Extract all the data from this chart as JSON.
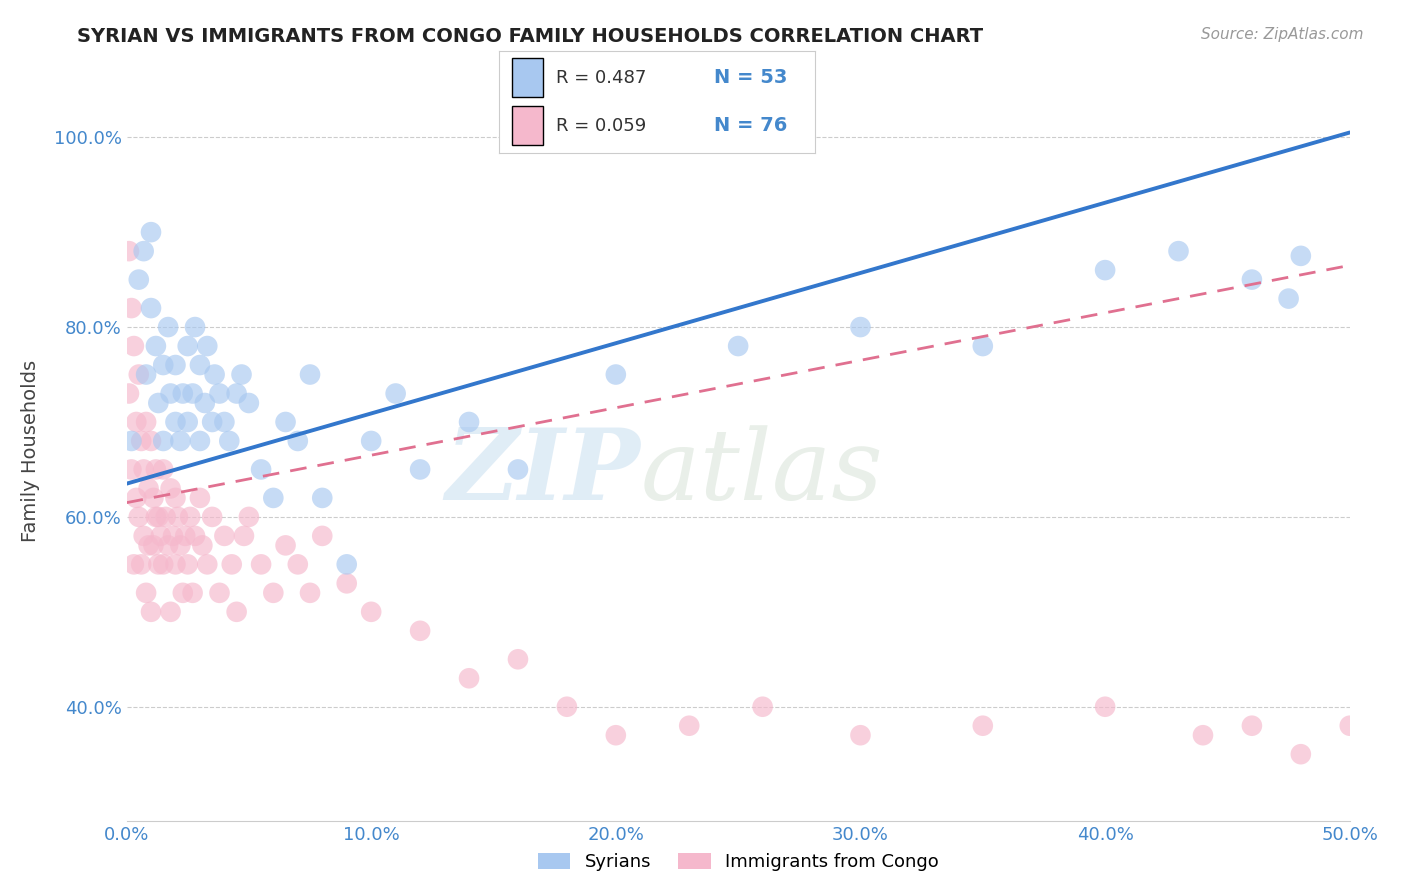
{
  "title": "SYRIAN VS IMMIGRANTS FROM CONGO FAMILY HOUSEHOLDS CORRELATION CHART",
  "source": "Source: ZipAtlas.com",
  "ylabel": "Family Households",
  "xlim": [
    0,
    0.5
  ],
  "ylim": [
    0.28,
    1.06
  ],
  "ytick_vals": [
    0.4,
    0.6,
    0.8,
    1.0
  ],
  "ytick_labels": [
    "40.0%",
    "60.0%",
    "80.0%",
    "100.0%"
  ],
  "xtick_vals": [
    0.0,
    0.1,
    0.2,
    0.3,
    0.4,
    0.5
  ],
  "xtick_labels": [
    "0.0%",
    "10.0%",
    "20.0%",
    "30.0%",
    "40.0%",
    "50.0%"
  ],
  "syrian_color": "#a8c8f0",
  "congo_color": "#f5b8cc",
  "syrian_line_color": "#3377cc",
  "congo_line_color": "#e07090",
  "watermark_zip": "ZIP",
  "watermark_atlas": "atlas",
  "syrian_line_x0": 0.0,
  "syrian_line_y0": 0.635,
  "syrian_line_x1": 0.5,
  "syrian_line_y1": 1.005,
  "congo_line_x0": 0.0,
  "congo_line_y0": 0.615,
  "congo_line_x1": 0.5,
  "congo_line_y1": 0.865,
  "syrian_points_x": [
    0.002,
    0.005,
    0.007,
    0.008,
    0.01,
    0.01,
    0.012,
    0.013,
    0.015,
    0.015,
    0.017,
    0.018,
    0.02,
    0.02,
    0.022,
    0.023,
    0.025,
    0.025,
    0.027,
    0.028,
    0.03,
    0.03,
    0.032,
    0.033,
    0.035,
    0.036,
    0.038,
    0.04,
    0.042,
    0.045,
    0.047,
    0.05,
    0.055,
    0.06,
    0.065,
    0.07,
    0.075,
    0.08,
    0.09,
    0.1,
    0.11,
    0.12,
    0.14,
    0.16,
    0.2,
    0.25,
    0.3,
    0.35,
    0.4,
    0.43,
    0.46,
    0.475,
    0.48
  ],
  "syrian_points_y": [
    0.68,
    0.85,
    0.88,
    0.75,
    0.82,
    0.9,
    0.78,
    0.72,
    0.68,
    0.76,
    0.8,
    0.73,
    0.7,
    0.76,
    0.68,
    0.73,
    0.7,
    0.78,
    0.73,
    0.8,
    0.68,
    0.76,
    0.72,
    0.78,
    0.7,
    0.75,
    0.73,
    0.7,
    0.68,
    0.73,
    0.75,
    0.72,
    0.65,
    0.62,
    0.7,
    0.68,
    0.75,
    0.62,
    0.55,
    0.68,
    0.73,
    0.65,
    0.7,
    0.65,
    0.75,
    0.78,
    0.8,
    0.78,
    0.86,
    0.88,
    0.85,
    0.83,
    0.875
  ],
  "congo_points_x": [
    0.001,
    0.001,
    0.002,
    0.002,
    0.003,
    0.003,
    0.004,
    0.004,
    0.005,
    0.005,
    0.006,
    0.006,
    0.007,
    0.007,
    0.008,
    0.008,
    0.009,
    0.009,
    0.01,
    0.01,
    0.011,
    0.011,
    0.012,
    0.012,
    0.013,
    0.013,
    0.014,
    0.015,
    0.015,
    0.016,
    0.017,
    0.018,
    0.018,
    0.019,
    0.02,
    0.02,
    0.021,
    0.022,
    0.023,
    0.024,
    0.025,
    0.026,
    0.027,
    0.028,
    0.03,
    0.031,
    0.033,
    0.035,
    0.038,
    0.04,
    0.043,
    0.045,
    0.048,
    0.05,
    0.055,
    0.06,
    0.065,
    0.07,
    0.075,
    0.08,
    0.09,
    0.1,
    0.12,
    0.14,
    0.16,
    0.18,
    0.2,
    0.23,
    0.26,
    0.3,
    0.35,
    0.4,
    0.44,
    0.46,
    0.48,
    0.5
  ],
  "congo_points_y": [
    0.88,
    0.73,
    0.82,
    0.65,
    0.78,
    0.55,
    0.7,
    0.62,
    0.75,
    0.6,
    0.68,
    0.55,
    0.65,
    0.58,
    0.7,
    0.52,
    0.63,
    0.57,
    0.68,
    0.5,
    0.62,
    0.57,
    0.6,
    0.65,
    0.55,
    0.6,
    0.58,
    0.65,
    0.55,
    0.6,
    0.57,
    0.63,
    0.5,
    0.58,
    0.62,
    0.55,
    0.6,
    0.57,
    0.52,
    0.58,
    0.55,
    0.6,
    0.52,
    0.58,
    0.62,
    0.57,
    0.55,
    0.6,
    0.52,
    0.58,
    0.55,
    0.5,
    0.58,
    0.6,
    0.55,
    0.52,
    0.57,
    0.55,
    0.52,
    0.58,
    0.53,
    0.5,
    0.48,
    0.43,
    0.45,
    0.4,
    0.37,
    0.38,
    0.4,
    0.37,
    0.38,
    0.4,
    0.37,
    0.38,
    0.35,
    0.38
  ]
}
